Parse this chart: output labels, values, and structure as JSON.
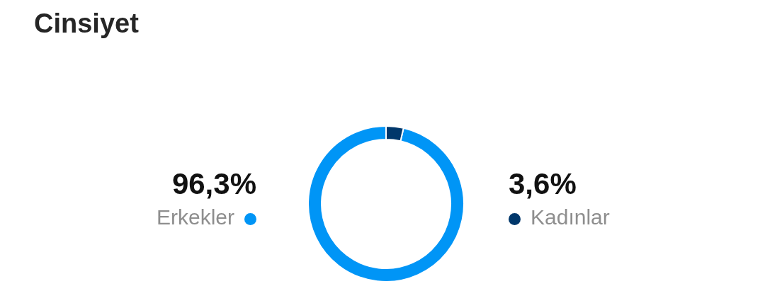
{
  "chart_data": {
    "type": "donut",
    "title": "Cinsiyet",
    "categories": [
      "Erkekler",
      "Kadınlar"
    ],
    "values": [
      96.3,
      3.6
    ],
    "value_labels": [
      "96,3%",
      "3,6%"
    ],
    "colors": [
      "#0095f6",
      "#00376b"
    ]
  }
}
